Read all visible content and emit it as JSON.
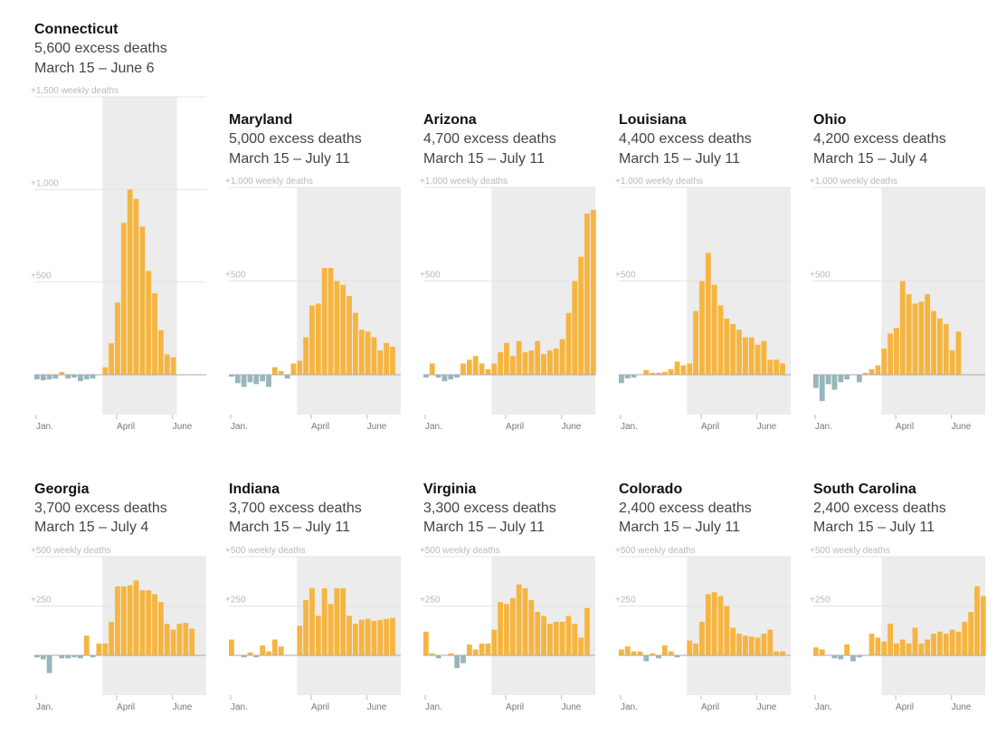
{
  "colors": {
    "positive": "#f6b540",
    "negative": "#97b6bd",
    "shade": "#ececec",
    "grid": "#e4e4e4",
    "baseline": "#aaaaaa"
  },
  "chart_data": [
    {
      "type": "bar",
      "state": "Connecticut",
      "excess": "5,600 excess deaths",
      "period": "March 15 – June 6",
      "ylim": [
        -300,
        1500
      ],
      "yticks": [
        {
          "v": 500,
          "label": "+500"
        },
        {
          "v": 1000,
          "label": "+1,000"
        },
        {
          "v": 1500,
          "label": "+1,500 weekly deaths"
        }
      ],
      "shade": [
        11,
        23
      ],
      "xticks": [
        {
          "i": 0,
          "label": "Jan."
        },
        {
          "i": 13,
          "label": "April"
        },
        {
          "i": 22,
          "label": "June"
        }
      ],
      "values": [
        -25,
        -30,
        -25,
        -20,
        15,
        -20,
        -15,
        -35,
        -25,
        -20,
        0,
        40,
        170,
        390,
        820,
        1000,
        950,
        800,
        560,
        440,
        240,
        110,
        95
      ]
    },
    {
      "type": "bar",
      "state": "Maryland",
      "excess": "5,000 excess deaths",
      "period": "March 15 – July 11",
      "ylim": [
        -200,
        1000
      ],
      "yticks": [
        {
          "v": 500,
          "label": "+500"
        },
        {
          "v": 1000,
          "label": "+1,000 weekly deaths"
        }
      ],
      "shade": [
        11,
        28
      ],
      "xticks": [
        {
          "i": 0,
          "label": "Jan."
        },
        {
          "i": 13,
          "label": "April"
        },
        {
          "i": 22,
          "label": "June"
        }
      ],
      "values": [
        -10,
        -45,
        -65,
        -40,
        -50,
        -35,
        -65,
        40,
        20,
        -20,
        60,
        75,
        200,
        370,
        380,
        570,
        570,
        500,
        480,
        420,
        330,
        240,
        230,
        200,
        130,
        170,
        150
      ]
    },
    {
      "type": "bar",
      "state": "Arizona",
      "excess": "4,700 excess deaths",
      "period": "March 15 – July 11",
      "ylim": [
        -200,
        1000
      ],
      "yticks": [
        {
          "v": 500,
          "label": "+500"
        },
        {
          "v": 1000,
          "label": "+1,000 weekly deaths"
        }
      ],
      "shade": [
        11,
        28
      ],
      "xticks": [
        {
          "i": 0,
          "label": "Jan."
        },
        {
          "i": 13,
          "label": "April"
        },
        {
          "i": 22,
          "label": "June"
        }
      ],
      "values": [
        -15,
        60,
        -15,
        -35,
        -25,
        -15,
        60,
        80,
        100,
        60,
        30,
        60,
        120,
        170,
        100,
        180,
        120,
        130,
        180,
        110,
        130,
        140,
        190,
        330,
        500,
        630,
        860,
        880
      ]
    },
    {
      "type": "bar",
      "state": "Louisiana",
      "excess": "4,400 excess deaths",
      "period": "March 15 – July 11",
      "ylim": [
        -200,
        1000
      ],
      "yticks": [
        {
          "v": 500,
          "label": "+500"
        },
        {
          "v": 1000,
          "label": "+1,000 weekly deaths"
        }
      ],
      "shade": [
        11,
        28
      ],
      "xticks": [
        {
          "i": 0,
          "label": "Jan."
        },
        {
          "i": 13,
          "label": "April"
        },
        {
          "i": 22,
          "label": "June"
        }
      ],
      "values": [
        -45,
        -20,
        -15,
        0,
        25,
        10,
        10,
        15,
        30,
        70,
        50,
        60,
        340,
        500,
        650,
        480,
        370,
        300,
        270,
        240,
        200,
        200,
        160,
        180,
        80,
        80,
        60
      ]
    },
    {
      "type": "bar",
      "state": "Ohio",
      "excess": "4,200 excess deaths",
      "period": "March 15 – July 4",
      "ylim": [
        -200,
        1000
      ],
      "yticks": [
        {
          "v": 500,
          "label": "+500"
        },
        {
          "v": 1000,
          "label": "+1,000 weekly deaths"
        }
      ],
      "shade": [
        11,
        28
      ],
      "xticks": [
        {
          "i": 0,
          "label": "Jan."
        },
        {
          "i": 13,
          "label": "April"
        },
        {
          "i": 22,
          "label": "June"
        }
      ],
      "values": [
        -70,
        -140,
        -50,
        -80,
        -40,
        -25,
        0,
        -40,
        10,
        30,
        50,
        140,
        220,
        250,
        500,
        430,
        380,
        390,
        430,
        340,
        300,
        270,
        130,
        230
      ]
    },
    {
      "type": "bar",
      "state": "Georgia",
      "excess": "3,700 excess deaths",
      "period": "March 15 – July 4",
      "ylim": [
        -100,
        500
      ],
      "yticks": [
        {
          "v": 250,
          "label": "+250"
        },
        {
          "v": 500,
          "label": "+500 weekly deaths"
        }
      ],
      "shade": [
        11,
        28
      ],
      "xticks": [
        {
          "i": 0,
          "label": "Jan."
        },
        {
          "i": 13,
          "label": "April"
        },
        {
          "i": 22,
          "label": "June"
        }
      ],
      "values": [
        -10,
        -20,
        -90,
        0,
        -15,
        -15,
        -10,
        -15,
        100,
        -10,
        60,
        60,
        170,
        350,
        350,
        355,
        380,
        330,
        330,
        310,
        270,
        160,
        130,
        160,
        165,
        135
      ]
    },
    {
      "type": "bar",
      "state": "Indiana",
      "excess": "3,700 excess deaths",
      "period": "March 15 – July 11",
      "ylim": [
        -100,
        500
      ],
      "yticks": [
        {
          "v": 250,
          "label": "+250"
        },
        {
          "v": 500,
          "label": "+500 weekly deaths"
        }
      ],
      "shade": [
        11,
        28
      ],
      "xticks": [
        {
          "i": 0,
          "label": "Jan."
        },
        {
          "i": 13,
          "label": "April"
        },
        {
          "i": 22,
          "label": "June"
        }
      ],
      "values": [
        80,
        0,
        -10,
        15,
        -10,
        50,
        20,
        80,
        45,
        0,
        0,
        150,
        280,
        340,
        200,
        340,
        260,
        340,
        340,
        200,
        160,
        180,
        185,
        175,
        180,
        185,
        190
      ]
    },
    {
      "type": "bar",
      "state": "Virginia",
      "excess": "3,300 excess deaths",
      "period": "March 15 – July 11",
      "ylim": [
        -100,
        500
      ],
      "yticks": [
        {
          "v": 250,
          "label": "+250"
        },
        {
          "v": 500,
          "label": "+500 weekly deaths"
        }
      ],
      "shade": [
        11,
        28
      ],
      "xticks": [
        {
          "i": 0,
          "label": "Jan."
        },
        {
          "i": 13,
          "label": "April"
        },
        {
          "i": 22,
          "label": "June"
        }
      ],
      "values": [
        120,
        10,
        -15,
        0,
        10,
        -65,
        -40,
        55,
        30,
        60,
        60,
        130,
        270,
        260,
        290,
        360,
        340,
        280,
        220,
        200,
        160,
        170,
        170,
        200,
        160,
        90,
        240
      ]
    },
    {
      "type": "bar",
      "state": "Colorado",
      "excess": "2,400 excess deaths",
      "period": "March 15 – July 11",
      "ylim": [
        -100,
        500
      ],
      "yticks": [
        {
          "v": 250,
          "label": "+250"
        },
        {
          "v": 500,
          "label": "+500 weekly deaths"
        }
      ],
      "shade": [
        11,
        28
      ],
      "xticks": [
        {
          "i": 0,
          "label": "Jan."
        },
        {
          "i": 13,
          "label": "April"
        },
        {
          "i": 22,
          "label": "June"
        }
      ],
      "values": [
        30,
        45,
        20,
        20,
        -30,
        10,
        -15,
        50,
        20,
        -10,
        0,
        75,
        60,
        170,
        310,
        320,
        300,
        250,
        140,
        110,
        100,
        95,
        90,
        110,
        130,
        20,
        20
      ]
    },
    {
      "type": "bar",
      "state": "South Carolina",
      "excess": "2,400 excess deaths",
      "period": "March 15 – July 11",
      "ylim": [
        -100,
        500
      ],
      "yticks": [
        {
          "v": 250,
          "label": "+250"
        },
        {
          "v": 500,
          "label": "+500 weekly deaths"
        }
      ],
      "shade": [
        11,
        28
      ],
      "xticks": [
        {
          "i": 0,
          "label": "Jan."
        },
        {
          "i": 13,
          "label": "April"
        },
        {
          "i": 22,
          "label": "June"
        }
      ],
      "values": [
        40,
        30,
        0,
        -15,
        -20,
        55,
        -30,
        -10,
        0,
        110,
        90,
        70,
        160,
        60,
        80,
        60,
        140,
        60,
        80,
        110,
        120,
        110,
        130,
        120,
        170,
        220,
        350,
        300
      ]
    }
  ]
}
